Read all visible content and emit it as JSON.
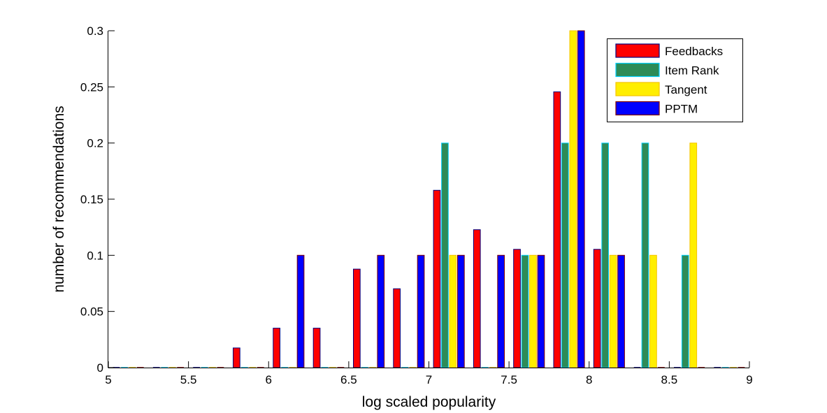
{
  "chart_data": {
    "type": "bar",
    "title": "",
    "xlabel": "log scaled popularity",
    "ylabel": "number of recommendations",
    "xlim": [
      5,
      9
    ],
    "ylim": [
      0,
      0.3
    ],
    "grid": false,
    "legend_position": "top-right",
    "x_ticks": [
      "5",
      "5.5",
      "6",
      "6.5",
      "7",
      "7.5",
      "8",
      "8.5",
      "9"
    ],
    "x_tick_values": [
      5,
      5.5,
      6,
      6.5,
      7,
      7.5,
      8,
      8.5,
      9
    ],
    "y_ticks": [
      "0",
      "0.05",
      "0.1",
      "0.15",
      "0.2",
      "0.25",
      "0.3"
    ],
    "y_tick_values": [
      0,
      0.05,
      0.1,
      0.15,
      0.2,
      0.25,
      0.3
    ],
    "x": [
      5.125,
      5.375,
      5.625,
      5.875,
      6.125,
      6.375,
      6.625,
      6.875,
      7.125,
      7.375,
      7.625,
      7.875,
      8.125,
      8.375,
      8.625,
      8.875
    ],
    "series": [
      {
        "name": "Feedbacks",
        "color": "#ff0000",
        "edge": "#00007f",
        "values": [
          0,
          0,
          0,
          0.0175,
          0.0351,
          0.0351,
          0.0877,
          0.0702,
          0.1579,
          0.1228,
          0.1053,
          0.2456,
          0.1053,
          0,
          0,
          0
        ]
      },
      {
        "name": "Item Rank",
        "color": "#2e8b57",
        "edge": "#00d0ff",
        "values": [
          0,
          0,
          0,
          0,
          0,
          0,
          0,
          0,
          0.2,
          0,
          0.1,
          0.2,
          0.2,
          0.2,
          0.1,
          0
        ]
      },
      {
        "name": "Tangent",
        "color": "#ffee00",
        "edge": "#f5c400",
        "values": [
          0,
          0,
          0,
          0,
          0,
          0,
          0,
          0,
          0.1,
          0,
          0.1,
          0.3,
          0.1,
          0.1,
          0.2,
          0
        ]
      },
      {
        "name": "PPTM",
        "color": "#0000ff",
        "edge": "#7f0000",
        "values": [
          0,
          0,
          0,
          0,
          0.1,
          0,
          0.1,
          0.1,
          0.1,
          0.1,
          0.1,
          0.3,
          0.1,
          0,
          0,
          0
        ]
      }
    ]
  }
}
